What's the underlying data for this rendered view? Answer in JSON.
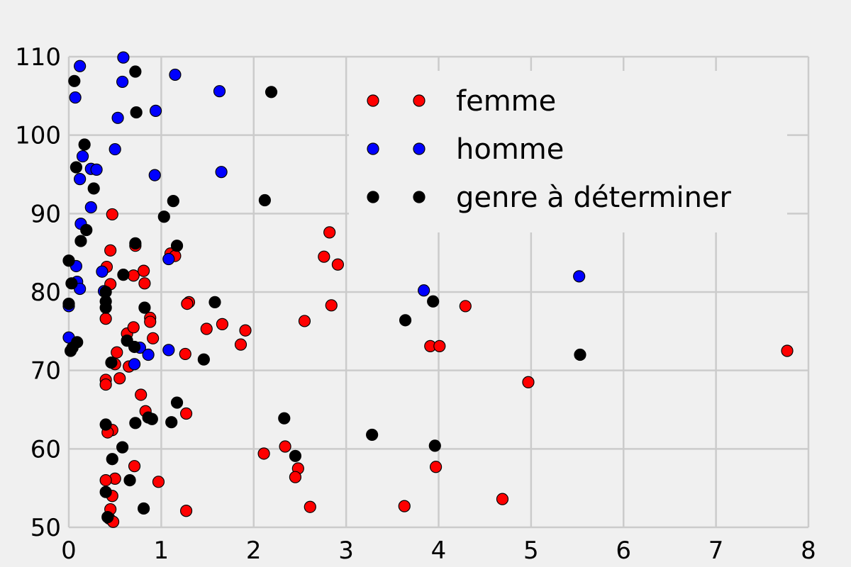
{
  "chart_data": {
    "type": "scatter",
    "title": "",
    "xlabel": "",
    "ylabel": "",
    "xlim": [
      0,
      8
    ],
    "ylim": [
      50,
      110
    ],
    "xticks": [
      0,
      1,
      2,
      3,
      4,
      5,
      6,
      7,
      8
    ],
    "yticks": [
      50,
      60,
      70,
      80,
      90,
      100,
      110
    ],
    "grid": true,
    "legend": "top-right",
    "series": [
      {
        "name": "femme",
        "color": "#ff0000",
        "points": [
          [
            0.47,
            89.9
          ],
          [
            0.45,
            85.3
          ],
          [
            0.72,
            85.9
          ],
          [
            1.1,
            84.9
          ],
          [
            1.15,
            84.6
          ],
          [
            0.41,
            83.2
          ],
          [
            0.7,
            82.1
          ],
          [
            0.81,
            82.7
          ],
          [
            0.45,
            81.0
          ],
          [
            0.82,
            81.1
          ],
          [
            1.3,
            78.7
          ],
          [
            1.28,
            78.5
          ],
          [
            0.4,
            76.6
          ],
          [
            0.88,
            76.7
          ],
          [
            0.88,
            76.2
          ],
          [
            0.63,
            74.7
          ],
          [
            0.7,
            75.5
          ],
          [
            1.49,
            75.3
          ],
          [
            1.66,
            75.9
          ],
          [
            1.91,
            75.1
          ],
          [
            0.91,
            74.1
          ],
          [
            1.86,
            73.3
          ],
          [
            0.52,
            72.3
          ],
          [
            1.26,
            72.1
          ],
          [
            0.5,
            70.8
          ],
          [
            0.65,
            70.5
          ],
          [
            0.55,
            69.0
          ],
          [
            0.4,
            68.8
          ],
          [
            0.4,
            68.2
          ],
          [
            0.78,
            66.9
          ],
          [
            0.83,
            64.8
          ],
          [
            1.27,
            64.5
          ],
          [
            0.47,
            62.4
          ],
          [
            0.42,
            62.1
          ],
          [
            2.11,
            59.4
          ],
          [
            2.34,
            60.3
          ],
          [
            0.71,
            57.8
          ],
          [
            0.97,
            55.8
          ],
          [
            0.5,
            56.2
          ],
          [
            0.4,
            56.0
          ],
          [
            0.47,
            54.0
          ],
          [
            0.45,
            52.3
          ],
          [
            0.44,
            51.1
          ],
          [
            0.48,
            50.7
          ],
          [
            1.27,
            52.1
          ],
          [
            2.48,
            57.5
          ],
          [
            2.45,
            56.4
          ],
          [
            2.61,
            52.6
          ],
          [
            2.76,
            84.5
          ],
          [
            2.82,
            87.6
          ],
          [
            2.91,
            83.5
          ],
          [
            2.84,
            78.3
          ],
          [
            2.55,
            76.3
          ],
          [
            3.91,
            73.1
          ],
          [
            4.01,
            73.1
          ],
          [
            4.29,
            78.2
          ],
          [
            3.97,
            57.7
          ],
          [
            3.63,
            52.7
          ],
          [
            4.69,
            53.6
          ],
          [
            4.97,
            68.5
          ],
          [
            7.77,
            72.5
          ]
        ]
      },
      {
        "name": "homme",
        "color": "#0000ff",
        "points": [
          [
            0.12,
            108.8
          ],
          [
            0.59,
            109.9
          ],
          [
            0.58,
            106.8
          ],
          [
            1.15,
            107.7
          ],
          [
            0.07,
            104.8
          ],
          [
            1.63,
            105.6
          ],
          [
            0.53,
            102.2
          ],
          [
            0.94,
            103.1
          ],
          [
            0.5,
            98.2
          ],
          [
            0.15,
            97.3
          ],
          [
            0.24,
            95.7
          ],
          [
            0.3,
            95.6
          ],
          [
            0.12,
            94.4
          ],
          [
            0.93,
            94.9
          ],
          [
            1.65,
            95.3
          ],
          [
            0.24,
            90.8
          ],
          [
            0.13,
            88.7
          ],
          [
            0.08,
            83.3
          ],
          [
            0.36,
            82.6
          ],
          [
            0.09,
            81.3
          ],
          [
            0.12,
            80.4
          ],
          [
            0.38,
            80.1
          ],
          [
            0.0,
            78.2
          ],
          [
            0.0,
            74.2
          ],
          [
            0.77,
            72.9
          ],
          [
            0.86,
            72.0
          ],
          [
            1.08,
            72.6
          ],
          [
            0.71,
            70.8
          ],
          [
            1.08,
            84.2
          ],
          [
            3.84,
            80.2
          ],
          [
            5.52,
            82.0
          ]
        ]
      },
      {
        "name": "genre à déterminer",
        "color": "#000000",
        "points": [
          [
            0.06,
            106.9
          ],
          [
            0.72,
            108.1
          ],
          [
            0.73,
            102.9
          ],
          [
            2.19,
            105.5
          ],
          [
            0.17,
            98.8
          ],
          [
            0.08,
            95.9
          ],
          [
            0.27,
            93.2
          ],
          [
            1.13,
            91.6
          ],
          [
            2.12,
            91.7
          ],
          [
            1.03,
            89.6
          ],
          [
            0.19,
            87.9
          ],
          [
            0.13,
            86.5
          ],
          [
            0.72,
            86.2
          ],
          [
            1.17,
            85.9
          ],
          [
            0.0,
            84.0
          ],
          [
            0.59,
            82.2
          ],
          [
            0.03,
            81.1
          ],
          [
            0.0,
            78.5
          ],
          [
            0.4,
            80.0
          ],
          [
            0.4,
            78.8
          ],
          [
            0.4,
            78.0
          ],
          [
            0.82,
            78.0
          ],
          [
            1.58,
            78.7
          ],
          [
            0.09,
            73.6
          ],
          [
            0.63,
            73.8
          ],
          [
            0.02,
            72.5
          ],
          [
            0.04,
            72.9
          ],
          [
            0.71,
            73.0
          ],
          [
            1.46,
            71.4
          ],
          [
            0.46,
            71.0
          ],
          [
            1.17,
            65.9
          ],
          [
            0.86,
            64.0
          ],
          [
            0.9,
            63.8
          ],
          [
            0.72,
            63.3
          ],
          [
            1.11,
            63.4
          ],
          [
            0.4,
            63.1
          ],
          [
            2.33,
            63.9
          ],
          [
            3.28,
            61.8
          ],
          [
            0.58,
            60.2
          ],
          [
            2.45,
            59.1
          ],
          [
            0.47,
            58.7
          ],
          [
            0.66,
            56.0
          ],
          [
            0.4,
            54.5
          ],
          [
            0.81,
            52.4
          ],
          [
            0.42,
            51.3
          ],
          [
            3.64,
            76.4
          ],
          [
            3.94,
            78.8
          ],
          [
            3.96,
            60.4
          ],
          [
            5.53,
            72.0
          ]
        ]
      }
    ]
  }
}
